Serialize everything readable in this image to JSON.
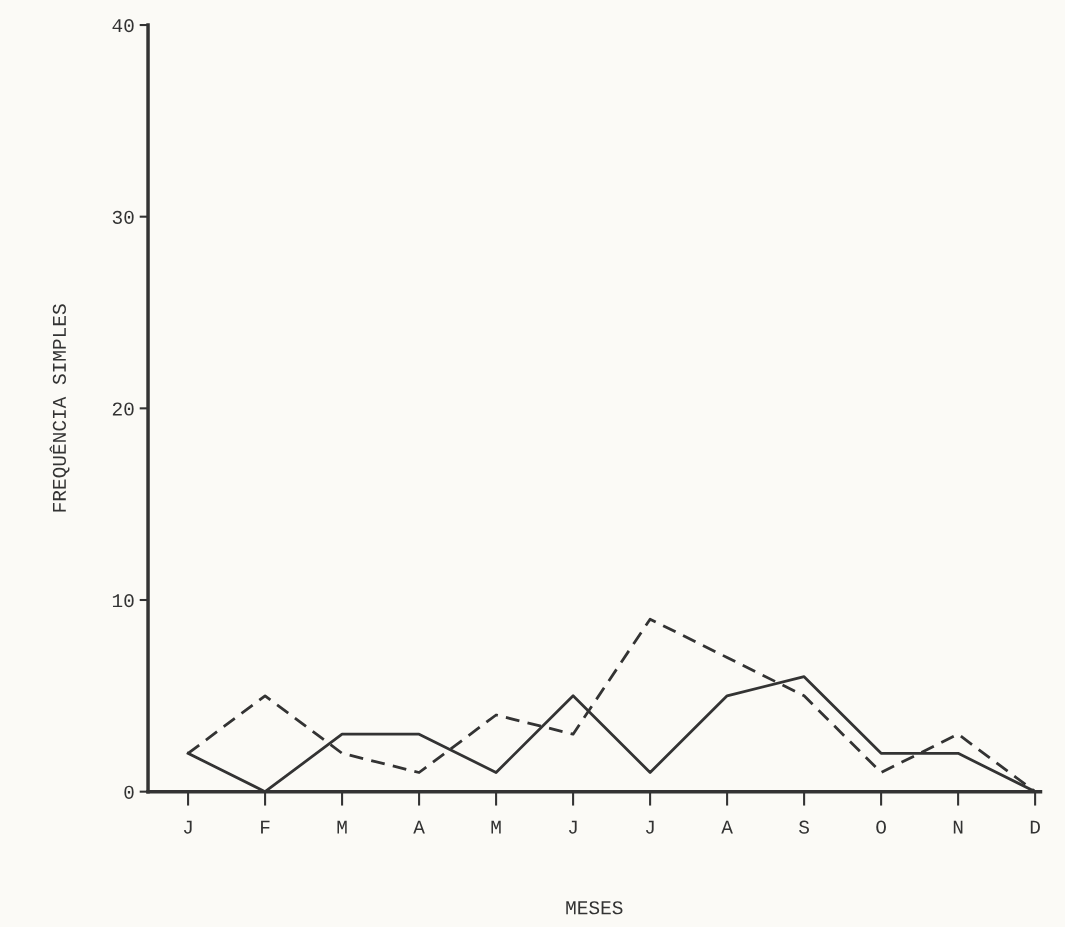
{
  "chart_data": {
    "type": "line",
    "xlabel": "MESES",
    "ylabel": "FREQUÊNCIA SIMPLES",
    "categories": [
      "J",
      "F",
      "M",
      "A",
      "M",
      "J",
      "J",
      "A",
      "S",
      "O",
      "N",
      "D"
    ],
    "ylim": [
      0,
      40
    ],
    "yticks": [
      0,
      10,
      20,
      30,
      40
    ],
    "grid": false,
    "legend": false,
    "marker": "none",
    "series": [
      {
        "color": "#333333",
        "line_style": "solid",
        "values": [
          2,
          0,
          3,
          3,
          1,
          5,
          1,
          5,
          6,
          2,
          2,
          0
        ]
      },
      {
        "color": "#333333",
        "line_style": "dashed",
        "values": [
          2,
          5,
          2,
          1,
          4,
          3,
          9,
          7,
          5,
          1,
          3,
          0
        ]
      }
    ]
  }
}
